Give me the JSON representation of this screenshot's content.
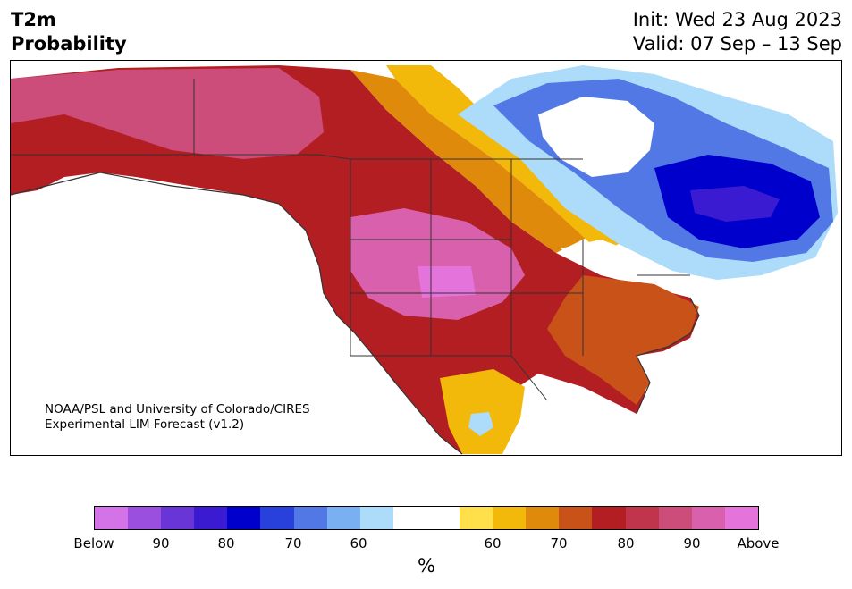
{
  "header": {
    "title_line1": "T2m",
    "title_line2": "Probability",
    "init": "Init: Wed 23 Aug 2023",
    "valid": "Valid: 07 Sep – 13 Sep"
  },
  "map": {
    "region": "North America",
    "credit_line1": "NOAA/PSL and University of Colorado/CIRES",
    "credit_line2": "Experimental LIM Forecast (v1.2)"
  },
  "legend": {
    "unit": "%",
    "tick_labels": [
      "Below",
      "90",
      "80",
      "70",
      "60",
      "60",
      "70",
      "80",
      "90",
      "Above"
    ],
    "colors": [
      "#d472e8",
      "#9a4fde",
      "#6a35d6",
      "#3a1bd2",
      "#0000cc",
      "#2840dc",
      "#5278e6",
      "#78b0f2",
      "#acdcfa",
      "#ffffff",
      "#ffffff",
      "#ffe04a",
      "#f2b80a",
      "#e08a0c",
      "#c85218",
      "#b21e22",
      "#c0344c",
      "#cc4c7a",
      "#d860ac",
      "#e474dc"
    ]
  },
  "colors": {
    "map_background": "#ffffff",
    "land_below_80": "#0000cc",
    "land_above_90": "#cc4c7a",
    "border_lines": "#333333"
  }
}
